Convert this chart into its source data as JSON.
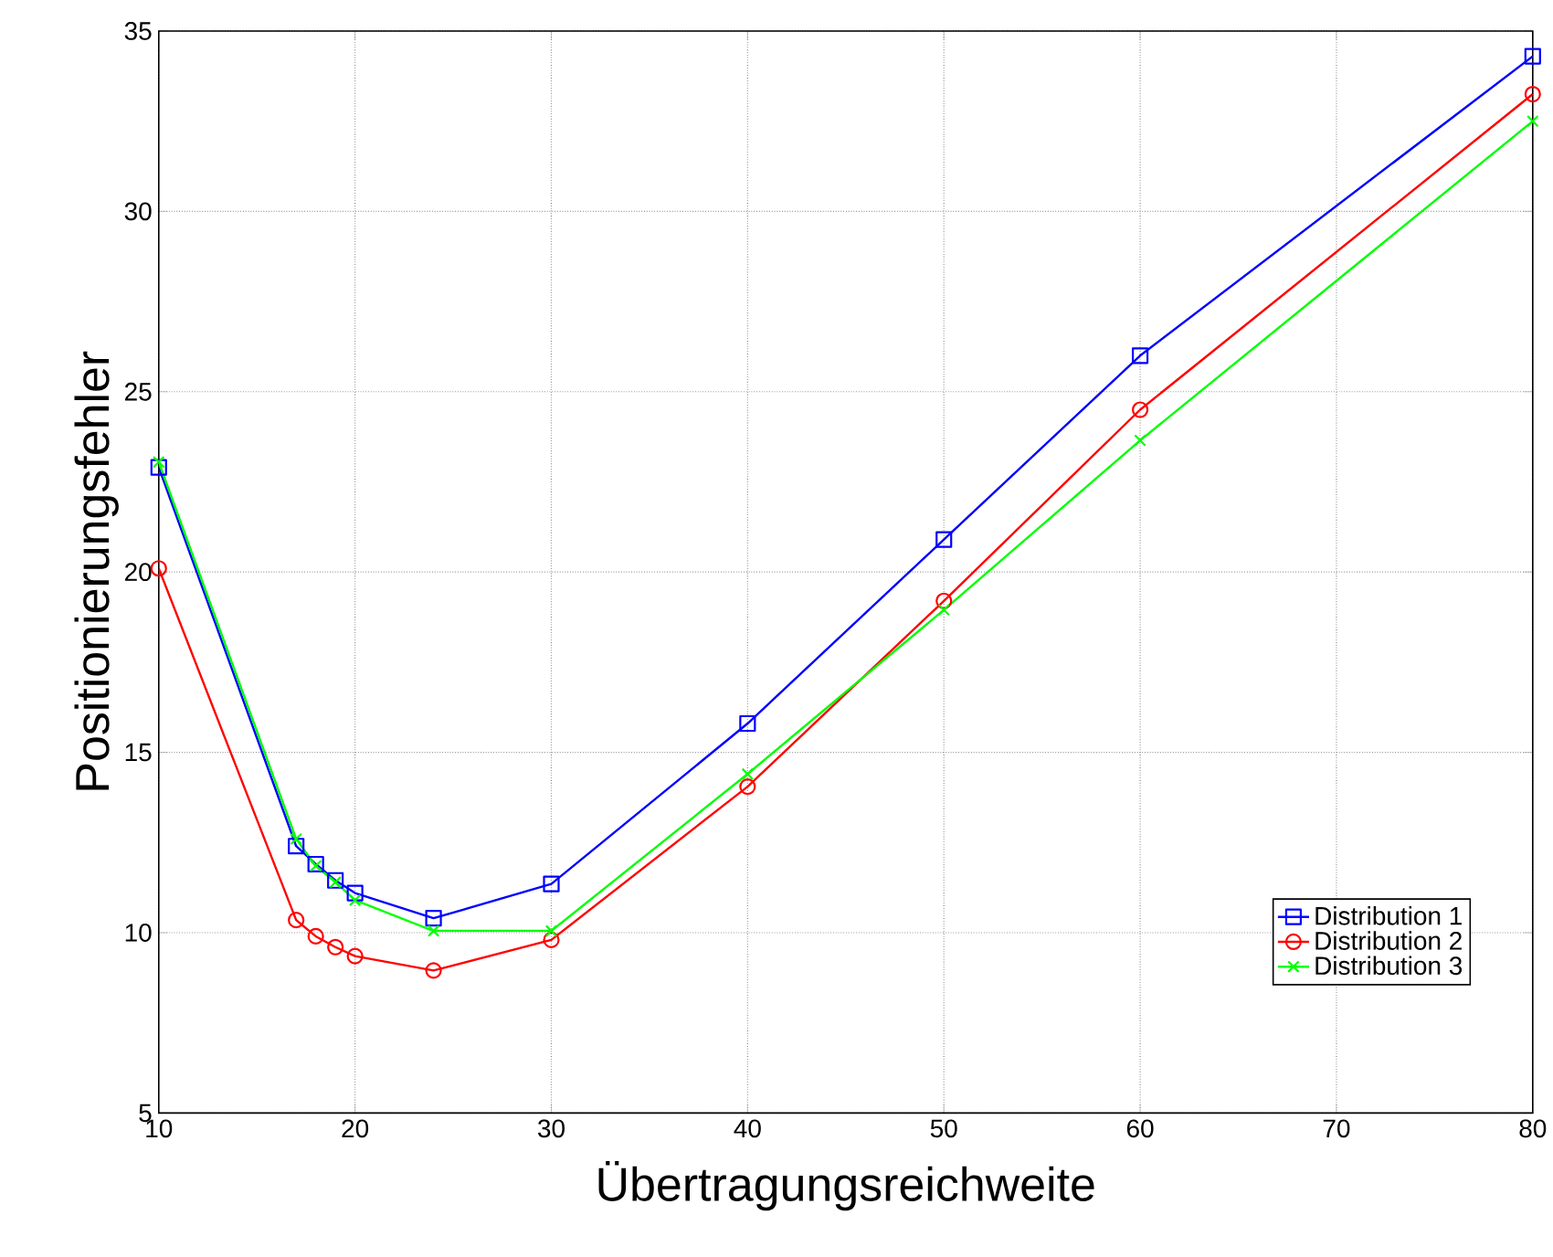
{
  "chart_data": {
    "type": "line",
    "xlabel": "Übertragungsreichweite",
    "ylabel": "Positionierungsfehler",
    "x": [
      10,
      17,
      18,
      19,
      20,
      24,
      30,
      40,
      50,
      60,
      80
    ],
    "series": [
      {
        "name": "Distribution 1",
        "color": "#0000ff",
        "marker": "square",
        "values": [
          22.9,
          12.4,
          11.9,
          11.45,
          11.1,
          10.4,
          11.35,
          15.8,
          20.9,
          26.0,
          34.3
        ]
      },
      {
        "name": "Distribution 2",
        "color": "#ff0000",
        "marker": "circle",
        "values": [
          20.1,
          10.35,
          9.9,
          9.6,
          9.35,
          8.95,
          9.8,
          14.05,
          19.2,
          24.5,
          33.25
        ]
      },
      {
        "name": "Distribution 3",
        "color": "#00ff00",
        "marker": "cross",
        "values": [
          23.05,
          12.6,
          11.85,
          11.4,
          10.9,
          10.05,
          10.05,
          14.4,
          18.95,
          23.65,
          32.5
        ]
      }
    ],
    "xlim": [
      10,
      80
    ],
    "xticks": [
      10,
      20,
      30,
      40,
      50,
      60,
      70,
      80
    ],
    "ylim": [
      5,
      35
    ],
    "yticks": [
      5,
      10,
      15,
      20,
      25,
      30,
      35
    ],
    "grid": true,
    "legend": "bottom right",
    "line_style": "solid"
  }
}
